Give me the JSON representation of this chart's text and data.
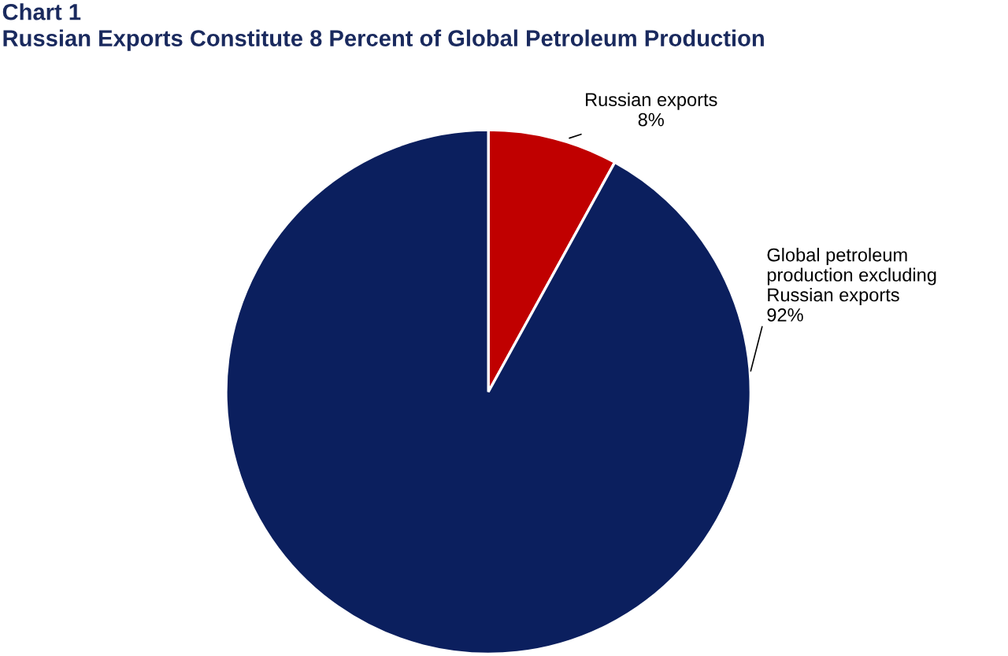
{
  "chart_data": {
    "type": "pie",
    "title": "Chart 1",
    "subtitle": "Russian Exports Constitute 8 Percent of Global Petroleum Production",
    "categories": [
      "Russian exports",
      "Global petroleum production excluding Russian exports"
    ],
    "values": [
      8,
      92
    ],
    "value_labels": [
      "8%",
      "92%"
    ],
    "colors": [
      "#c00000",
      "#0b1f5e"
    ],
    "legend": false
  }
}
